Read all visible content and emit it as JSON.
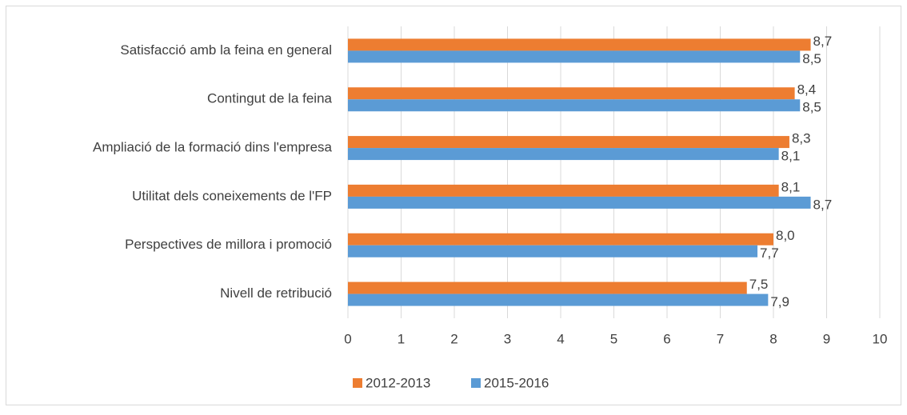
{
  "chart_data": {
    "type": "bar",
    "orientation": "horizontal",
    "categories": [
      "Satisfacció amb la feina en general",
      "Contingut de la feina",
      "Ampliació de la formació dins l'empresa",
      "Utilitat dels coneixements de l'FP",
      "Perspectives de millora i promoció",
      "Nivell de retribució"
    ],
    "series": [
      {
        "name": "2012-2013",
        "color": "#ed7d31",
        "values": [
          8.7,
          8.4,
          8.3,
          8.1,
          8.0,
          7.5
        ],
        "value_labels": [
          "8,7",
          "8,4",
          "8,3",
          "8,1",
          "8,0",
          "7,5"
        ]
      },
      {
        "name": "2015-2016",
        "color": "#5b9bd5",
        "values": [
          8.5,
          8.5,
          8.1,
          8.7,
          7.7,
          7.9
        ],
        "value_labels": [
          "8,5",
          "8,5",
          "8,1",
          "8,7",
          "7,7",
          "7,9"
        ]
      }
    ],
    "xlim": [
      0,
      10
    ],
    "xticks": [
      0,
      1,
      2,
      3,
      4,
      5,
      6,
      7,
      8,
      9,
      10
    ],
    "grid": true,
    "legend": "bottom"
  }
}
